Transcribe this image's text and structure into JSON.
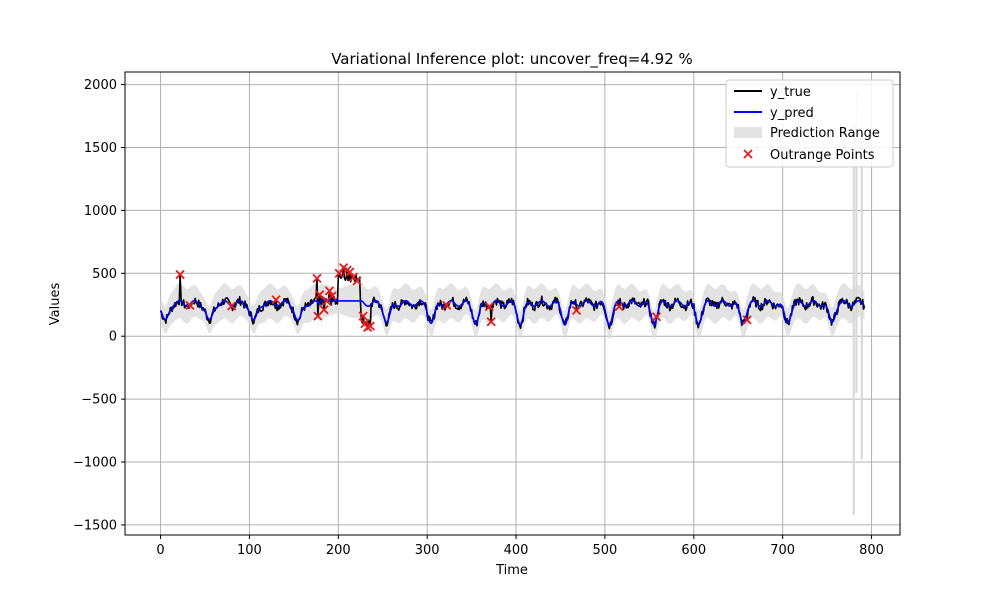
{
  "chart_data": {
    "type": "line",
    "title": "Variational Inference plot: uncover_freq=4.92 %",
    "xlabel": "Time",
    "ylabel": "Values",
    "xlim": [
      -40,
      832
    ],
    "ylim": [
      -1580,
      2100
    ],
    "xticks": [
      0,
      100,
      200,
      300,
      400,
      500,
      600,
      700,
      800
    ],
    "yticks": [
      -1500,
      -1000,
      -500,
      0,
      500,
      1000,
      1500,
      2000
    ],
    "grid": true,
    "legend_position": "top-right",
    "legend": [
      "y_true",
      "y_pred",
      "Prediction Range",
      "Outrange Points"
    ],
    "colors": {
      "y_true": "#000000",
      "y_pred": "#0000ff",
      "range": "#d9d9d9",
      "outrange": "#e41a1c",
      "grid": "#b0b0b0"
    },
    "x_max": 792,
    "outrange_points": [
      [
        22,
        490
      ],
      [
        33,
        245
      ],
      [
        80,
        240
      ],
      [
        130,
        290
      ],
      [
        176,
        460
      ],
      [
        177,
        160
      ],
      [
        179,
        330
      ],
      [
        184,
        210
      ],
      [
        187,
        280
      ],
      [
        190,
        360
      ],
      [
        193,
        320
      ],
      [
        201,
        500
      ],
      [
        206,
        545
      ],
      [
        210,
        525
      ],
      [
        213,
        510
      ],
      [
        217,
        470
      ],
      [
        221,
        440
      ],
      [
        228,
        160
      ],
      [
        230,
        100
      ],
      [
        233,
        70
      ],
      [
        236,
        80
      ],
      [
        322,
        245
      ],
      [
        370,
        235
      ],
      [
        372,
        115
      ],
      [
        468,
        205
      ],
      [
        516,
        235
      ],
      [
        558,
        155
      ],
      [
        660,
        130
      ]
    ],
    "range_spikes": [
      {
        "x": 780,
        "low": -1420,
        "high": 1700
      },
      {
        "x": 783,
        "low": -450,
        "high": 1950
      },
      {
        "x": 789,
        "low": -980,
        "high": 1820
      }
    ]
  }
}
